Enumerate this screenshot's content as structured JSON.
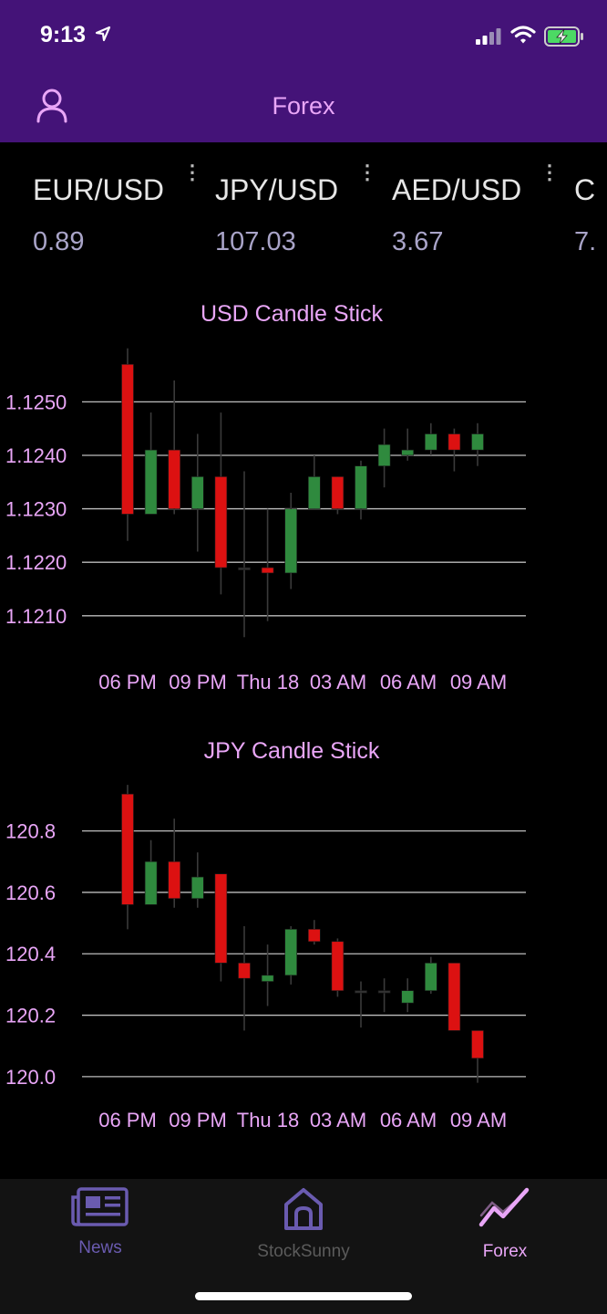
{
  "status_bar": {
    "time": "9:13"
  },
  "header": {
    "title": "Forex"
  },
  "tickers": [
    {
      "pair": "EUR/USD",
      "price": "0.89"
    },
    {
      "pair": "JPY/USD",
      "price": "107.03"
    },
    {
      "pair": "AED/USD",
      "price": "3.67"
    },
    {
      "pair": "C",
      "price": "7."
    }
  ],
  "colors": {
    "accent": "#441378",
    "label": "#e9a6f7",
    "up": "#2f8a3e",
    "down": "#dc1111"
  },
  "chart_data": [
    {
      "type": "candlestick",
      "title": "USD Candle Stick",
      "ylim": [
        1.1204,
        1.1262
      ],
      "y_ticks": [
        1.121,
        1.122,
        1.123,
        1.124,
        1.125
      ],
      "y_tick_labels": [
        "1.1210",
        "1.1220",
        "1.1230",
        "1.1240",
        "1.1250"
      ],
      "x_tick_labels": [
        "06 PM",
        "09 PM",
        "Thu 18",
        "03 AM",
        "06 AM",
        "09 AM"
      ],
      "candles": [
        {
          "o": 1.1257,
          "h": 1.126,
          "l": 1.1224,
          "c": 1.1229
        },
        {
          "o": 1.1229,
          "h": 1.1248,
          "l": 1.1229,
          "c": 1.1241
        },
        {
          "o": 1.1241,
          "h": 1.1254,
          "l": 1.1229,
          "c": 1.123
        },
        {
          "o": 1.123,
          "h": 1.1244,
          "l": 1.1222,
          "c": 1.1236
        },
        {
          "o": 1.1236,
          "h": 1.1248,
          "l": 1.1214,
          "c": 1.1219
        },
        {
          "o": 1.1219,
          "h": 1.1237,
          "l": 1.1206,
          "c": 1.1219
        },
        {
          "o": 1.1219,
          "h": 1.123,
          "l": 1.1209,
          "c": 1.1218
        },
        {
          "o": 1.1218,
          "h": 1.1233,
          "l": 1.1215,
          "c": 1.123
        },
        {
          "o": 1.123,
          "h": 1.124,
          "l": 1.123,
          "c": 1.1236
        },
        {
          "o": 1.1236,
          "h": 1.1236,
          "l": 1.1229,
          "c": 1.123
        },
        {
          "o": 1.123,
          "h": 1.1239,
          "l": 1.1228,
          "c": 1.1238
        },
        {
          "o": 1.1238,
          "h": 1.1245,
          "l": 1.1234,
          "c": 1.1242
        },
        {
          "o": 1.124,
          "h": 1.1245,
          "l": 1.1239,
          "c": 1.1241
        },
        {
          "o": 1.1241,
          "h": 1.1246,
          "l": 1.124,
          "c": 1.1244
        },
        {
          "o": 1.1244,
          "h": 1.1245,
          "l": 1.1237,
          "c": 1.1241
        },
        {
          "o": 1.1241,
          "h": 1.1246,
          "l": 1.1238,
          "c": 1.1244
        }
      ]
    },
    {
      "type": "candlestick",
      "title": "JPY Candle Stick",
      "ylim": [
        119.97,
        120.98
      ],
      "y_ticks": [
        120.0,
        120.2,
        120.4,
        120.6,
        120.8
      ],
      "y_tick_labels": [
        "120.0",
        "120.2",
        "120.4",
        "120.6",
        "120.8"
      ],
      "x_tick_labels": [
        "06 PM",
        "09 PM",
        "Thu 18",
        "03 AM",
        "06 AM",
        "09 AM"
      ],
      "candles": [
        {
          "o": 120.92,
          "h": 120.95,
          "l": 120.48,
          "c": 120.56
        },
        {
          "o": 120.56,
          "h": 120.77,
          "l": 120.56,
          "c": 120.7
        },
        {
          "o": 120.7,
          "h": 120.84,
          "l": 120.55,
          "c": 120.58
        },
        {
          "o": 120.58,
          "h": 120.73,
          "l": 120.55,
          "c": 120.65
        },
        {
          "o": 120.66,
          "h": 120.66,
          "l": 120.31,
          "c": 120.37
        },
        {
          "o": 120.37,
          "h": 120.49,
          "l": 120.15,
          "c": 120.32
        },
        {
          "o": 120.31,
          "h": 120.43,
          "l": 120.23,
          "c": 120.33
        },
        {
          "o": 120.33,
          "h": 120.49,
          "l": 120.3,
          "c": 120.48
        },
        {
          "o": 120.48,
          "h": 120.51,
          "l": 120.43,
          "c": 120.44
        },
        {
          "o": 120.44,
          "h": 120.45,
          "l": 120.26,
          "c": 120.28
        },
        {
          "o": 120.28,
          "h": 120.31,
          "l": 120.16,
          "c": 120.28
        },
        {
          "o": 120.28,
          "h": 120.32,
          "l": 120.21,
          "c": 120.28
        },
        {
          "o": 120.24,
          "h": 120.32,
          "l": 120.21,
          "c": 120.28
        },
        {
          "o": 120.28,
          "h": 120.39,
          "l": 120.27,
          "c": 120.37
        },
        {
          "o": 120.37,
          "h": 120.37,
          "l": 120.15,
          "c": 120.15
        },
        {
          "o": 120.15,
          "h": 120.15,
          "l": 119.98,
          "c": 120.06
        }
      ]
    }
  ],
  "tabs": [
    {
      "label": "News",
      "color": "#6a5bb0"
    },
    {
      "label": "StockSunny",
      "color": "#6a5bb0"
    },
    {
      "label": "Forex",
      "color": "#e9a6f7"
    }
  ]
}
